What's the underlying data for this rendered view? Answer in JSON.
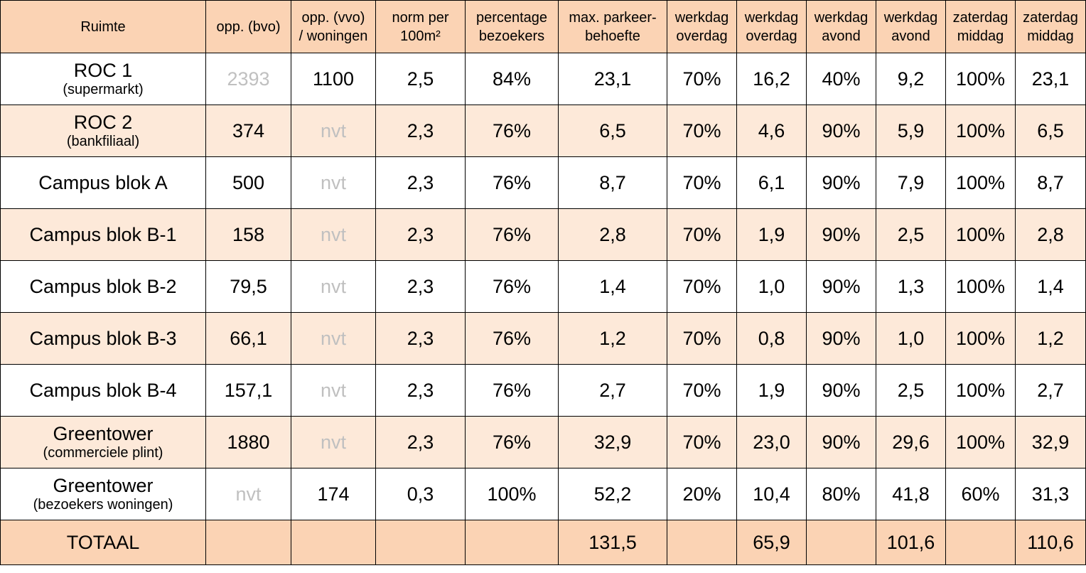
{
  "headers": [
    [
      "Ruimte"
    ],
    [
      "opp. (bvo)"
    ],
    [
      "opp. (vvo)",
      "/ woningen"
    ],
    [
      "norm per",
      "100m²"
    ],
    [
      "percentage",
      "bezoekers"
    ],
    [
      "max. parkeer-",
      "behoefte"
    ],
    [
      "werkdag",
      "overdag"
    ],
    [
      "werkdag",
      "overdag"
    ],
    [
      "werkdag",
      "avond"
    ],
    [
      "werkdag",
      "avond"
    ],
    [
      "zaterdag",
      "middag"
    ],
    [
      "zaterdag",
      "middag"
    ]
  ],
  "rows": [
    {
      "name": "ROC 1",
      "sub": "(supermarkt)",
      "bvo": "2393",
      "bvo_muted": true,
      "vvo": "1100",
      "vvo_muted": false,
      "norm": "2,5",
      "pct": "84%",
      "max": "23,1",
      "wo_pct": "70%",
      "wo": "16,2",
      "wa_pct": "40%",
      "wa": "9,2",
      "zm_pct": "100%",
      "zm": "23,1"
    },
    {
      "name": "ROC 2",
      "sub": "(bankfiliaal)",
      "bvo": "374",
      "bvo_muted": false,
      "vvo": "nvt",
      "vvo_muted": true,
      "norm": "2,3",
      "pct": "76%",
      "max": "6,5",
      "wo_pct": "70%",
      "wo": "4,6",
      "wa_pct": "90%",
      "wa": "5,9",
      "zm_pct": "100%",
      "zm": "6,5"
    },
    {
      "name": "Campus blok A",
      "sub": "",
      "bvo": "500",
      "bvo_muted": false,
      "vvo": "nvt",
      "vvo_muted": true,
      "norm": "2,3",
      "pct": "76%",
      "max": "8,7",
      "wo_pct": "70%",
      "wo": "6,1",
      "wa_pct": "90%",
      "wa": "7,9",
      "zm_pct": "100%",
      "zm": "8,7"
    },
    {
      "name": "Campus blok B-1",
      "sub": "",
      "bvo": "158",
      "bvo_muted": false,
      "vvo": "nvt",
      "vvo_muted": true,
      "norm": "2,3",
      "pct": "76%",
      "max": "2,8",
      "wo_pct": "70%",
      "wo": "1,9",
      "wa_pct": "90%",
      "wa": "2,5",
      "zm_pct": "100%",
      "zm": "2,8"
    },
    {
      "name": "Campus blok B-2",
      "sub": "",
      "bvo": "79,5",
      "bvo_muted": false,
      "vvo": "nvt",
      "vvo_muted": true,
      "norm": "2,3",
      "pct": "76%",
      "max": "1,4",
      "wo_pct": "70%",
      "wo": "1,0",
      "wa_pct": "90%",
      "wa": "1,3",
      "zm_pct": "100%",
      "zm": "1,4"
    },
    {
      "name": "Campus blok B-3",
      "sub": "",
      "bvo": "66,1",
      "bvo_muted": false,
      "vvo": "nvt",
      "vvo_muted": true,
      "norm": "2,3",
      "pct": "76%",
      "max": "1,2",
      "wo_pct": "70%",
      "wo": "0,8",
      "wa_pct": "90%",
      "wa": "1,0",
      "zm_pct": "100%",
      "zm": "1,2"
    },
    {
      "name": "Campus blok B-4",
      "sub": "",
      "bvo": "157,1",
      "bvo_muted": false,
      "vvo": "nvt",
      "vvo_muted": true,
      "norm": "2,3",
      "pct": "76%",
      "max": "2,7",
      "wo_pct": "70%",
      "wo": "1,9",
      "wa_pct": "90%",
      "wa": "2,5",
      "zm_pct": "100%",
      "zm": "2,7"
    },
    {
      "name": "Greentower",
      "sub": "(commerciele plint)",
      "bvo": "1880",
      "bvo_muted": false,
      "vvo": "nvt",
      "vvo_muted": true,
      "norm": "2,3",
      "pct": "76%",
      "max": "32,9",
      "wo_pct": "70%",
      "wo": "23,0",
      "wa_pct": "90%",
      "wa": "29,6",
      "zm_pct": "100%",
      "zm": "32,9"
    },
    {
      "name": "Greentower",
      "sub": "(bezoekers woningen)",
      "bvo": "nvt",
      "bvo_muted": true,
      "vvo": "174",
      "vvo_muted": false,
      "norm": "0,3",
      "pct": "100%",
      "max": "52,2",
      "wo_pct": "20%",
      "wo": "10,4",
      "wa_pct": "80%",
      "wa": "41,8",
      "zm_pct": "60%",
      "zm": "31,3"
    }
  ],
  "total": {
    "label": "TOTAAL",
    "max": "131,5",
    "wo": "65,9",
    "wa": "101,6",
    "zm": "110,6"
  }
}
